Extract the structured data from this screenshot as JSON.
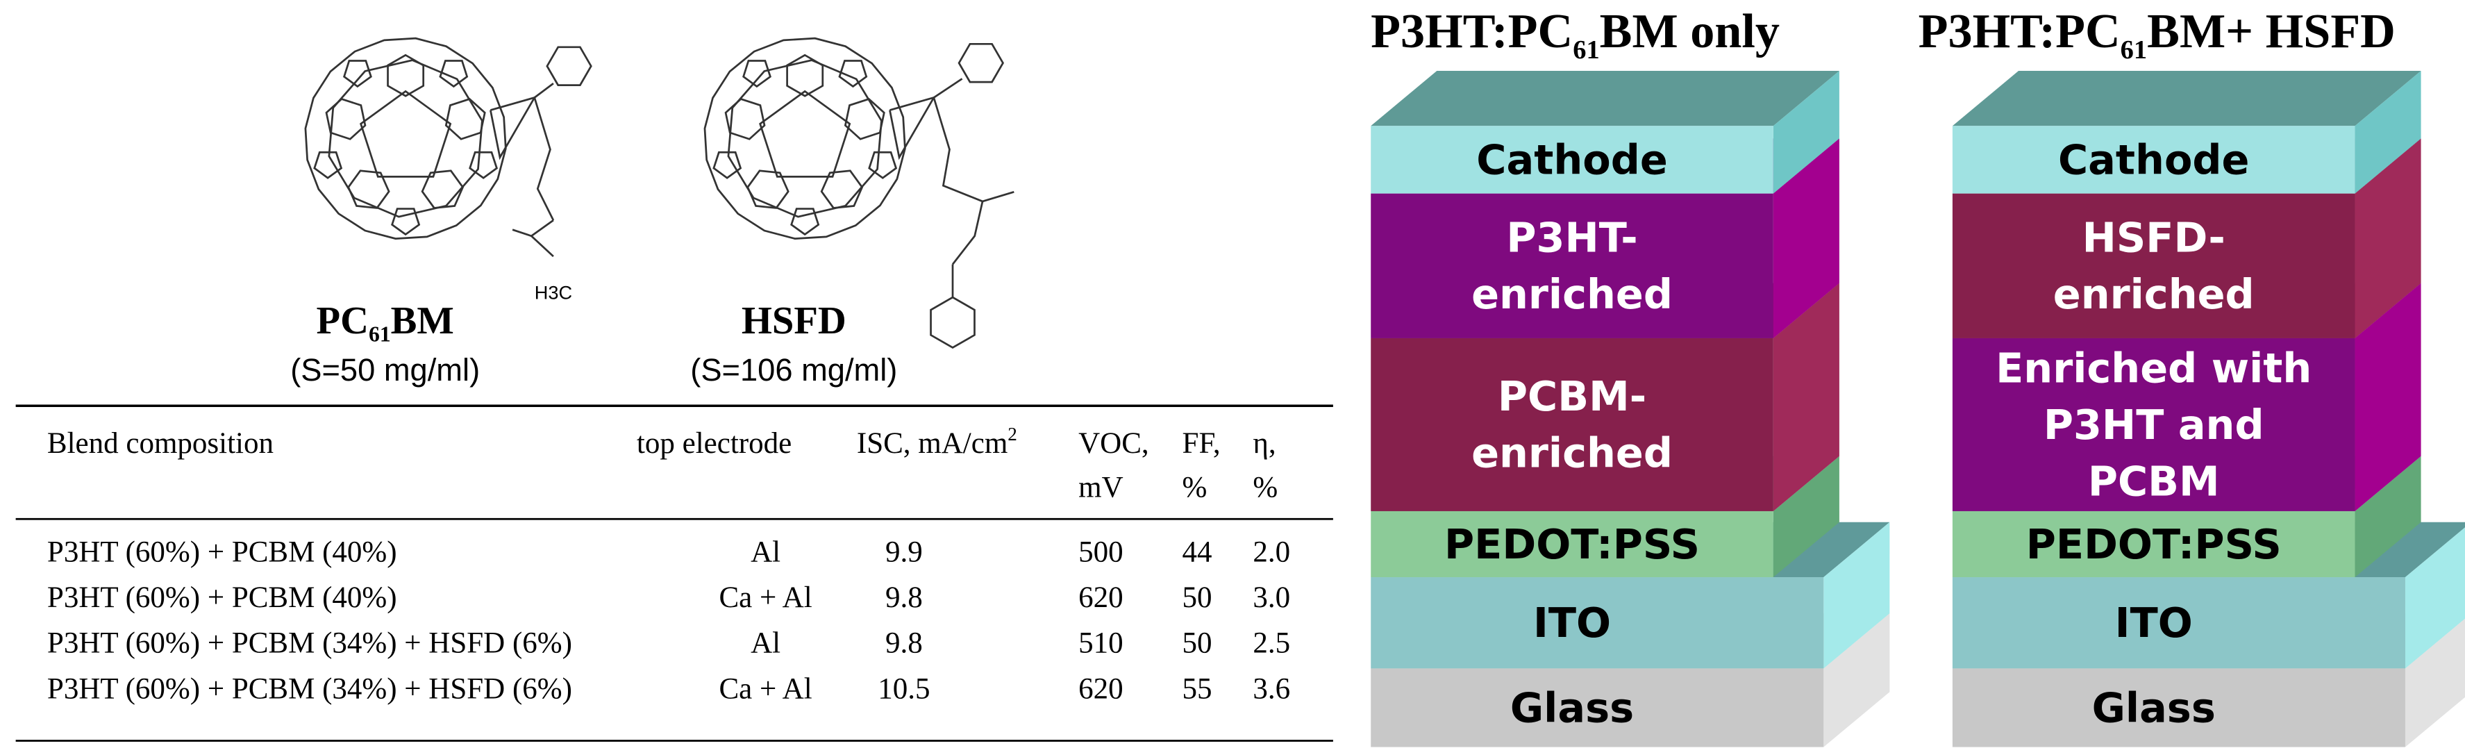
{
  "molecules": [
    {
      "name_pre": "PC",
      "name_sub": "61",
      "name_post": "BM",
      "solubility": "(S=50 mg/ml)",
      "label": "H3C"
    },
    {
      "name": "HSFD",
      "solubility": "(S=106 mg/ml)"
    }
  ],
  "table": {
    "header": [
      [
        "Blend composition"
      ],
      [
        "top electrode"
      ],
      [
        "ISC, mA/cm",
        "2"
      ],
      [
        "VOC,",
        "mV"
      ],
      [
        "FF,",
        "%"
      ],
      [
        "η,",
        "%"
      ]
    ],
    "rows": [
      [
        "P3HT (60%) + PCBM (40%)",
        "Al",
        "9.9",
        "500",
        "44",
        "2.0"
      ],
      [
        "P3HT (60%) + PCBM (40%)",
        "Ca + Al",
        "9.8",
        "620",
        "50",
        "3.0"
      ],
      [
        "P3HT (60%) + PCBM (34%) + HSFD (6%)",
        "Al",
        "9.8",
        "510",
        "50",
        "2.5"
      ],
      [
        "P3HT (60%) + PCBM (34%) + HSFD (6%)",
        "Ca + Al",
        "10.5",
        "620",
        "55",
        "3.6"
      ]
    ]
  },
  "stacks": [
    {
      "title_pre": "P3HT:PC",
      "title_sub": "61",
      "title_post": "BM only",
      "layers": [
        [
          "Cathode"
        ],
        [
          "P3HT-",
          "enriched"
        ],
        [
          "PCBM-",
          "enriched"
        ],
        [
          "PEDOT:PSS"
        ],
        [
          "ITO"
        ],
        [
          "Glass"
        ]
      ]
    },
    {
      "title_pre": "P3HT:PC",
      "title_sub": "61",
      "title_post": "BM+ HSFD",
      "layers": [
        [
          "Cathode"
        ],
        [
          "HSFD-",
          "enriched"
        ],
        [
          "Enriched with",
          "P3HT and",
          "PCBM"
        ],
        [
          "PEDOT:PSS"
        ],
        [
          "ITO"
        ],
        [
          "Glass"
        ]
      ]
    }
  ]
}
